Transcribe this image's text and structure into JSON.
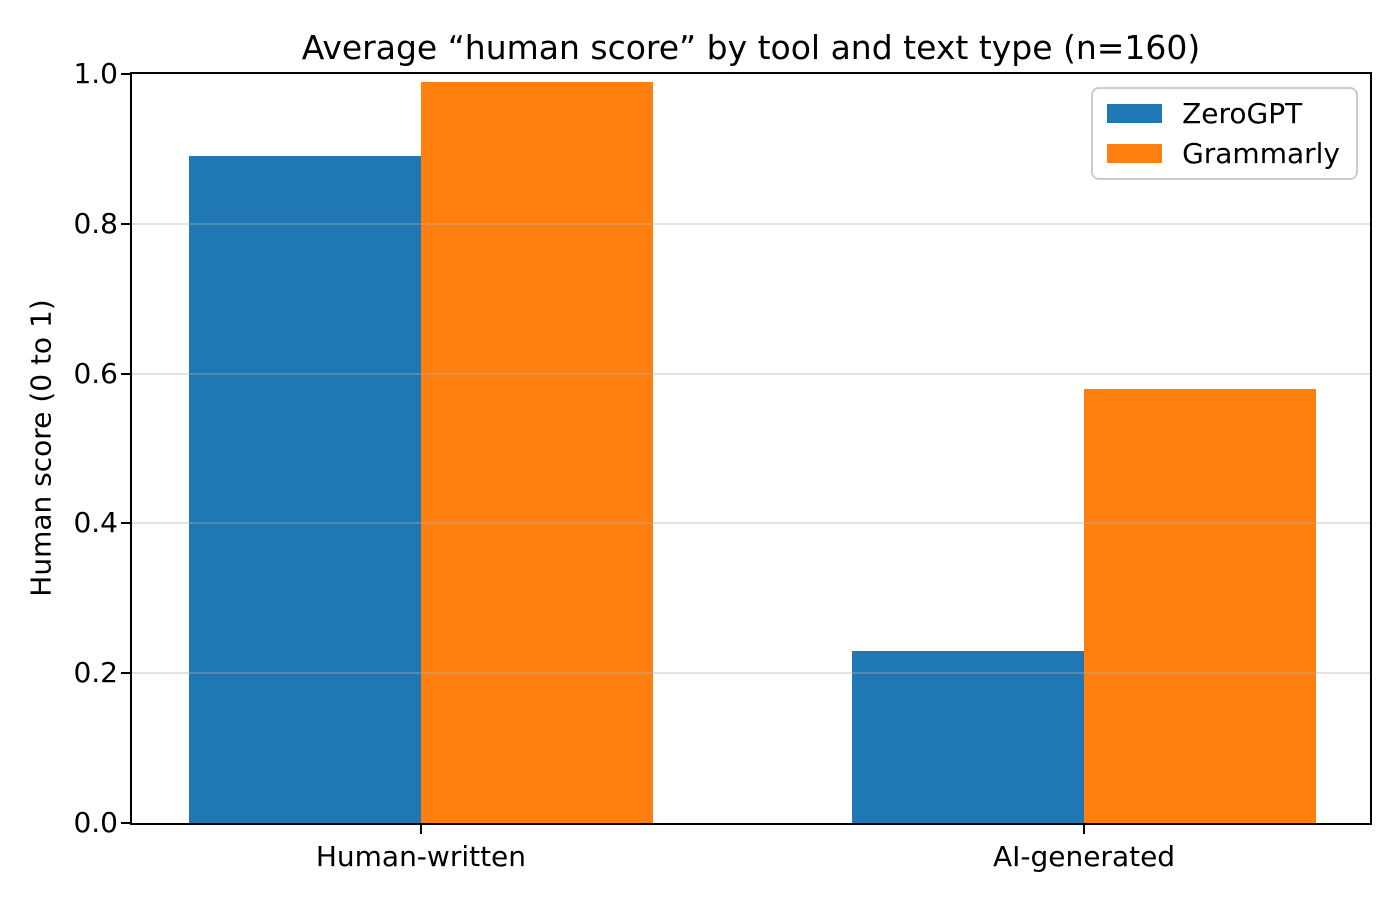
{
  "chart_data": {
    "type": "bar",
    "title": "Average “human score” by tool and text type (n=160)",
    "ylabel": "Human score (0 to 1)",
    "xlabel": "",
    "categories": [
      "Human-written",
      "AI-generated"
    ],
    "series": [
      {
        "name": "ZeroGPT",
        "color": "#1f77b4",
        "values": [
          0.89,
          0.23
        ]
      },
      {
        "name": "Grammarly",
        "color": "#ff7f0e",
        "values": [
          0.99,
          0.58
        ]
      }
    ],
    "ylim": [
      0.0,
      1.0
    ],
    "yticks": [
      0.0,
      0.2,
      0.4,
      0.6,
      0.8,
      1.0
    ],
    "ytick_labels": [
      "0.0",
      "0.2",
      "0.4",
      "0.6",
      "0.8",
      "1.0"
    ],
    "grid": "y",
    "grid_on_top_of_bars": true,
    "legend_position": "upper right"
  },
  "colors": {
    "background": "#ffffff",
    "text": "#000000",
    "spine": "#000000",
    "grid": "#b0b0b0",
    "legend_border": "#cccccc",
    "legend_background": "#ffffff",
    "series_blue": "#1f77b4",
    "series_orange": "#ff7f0e"
  }
}
